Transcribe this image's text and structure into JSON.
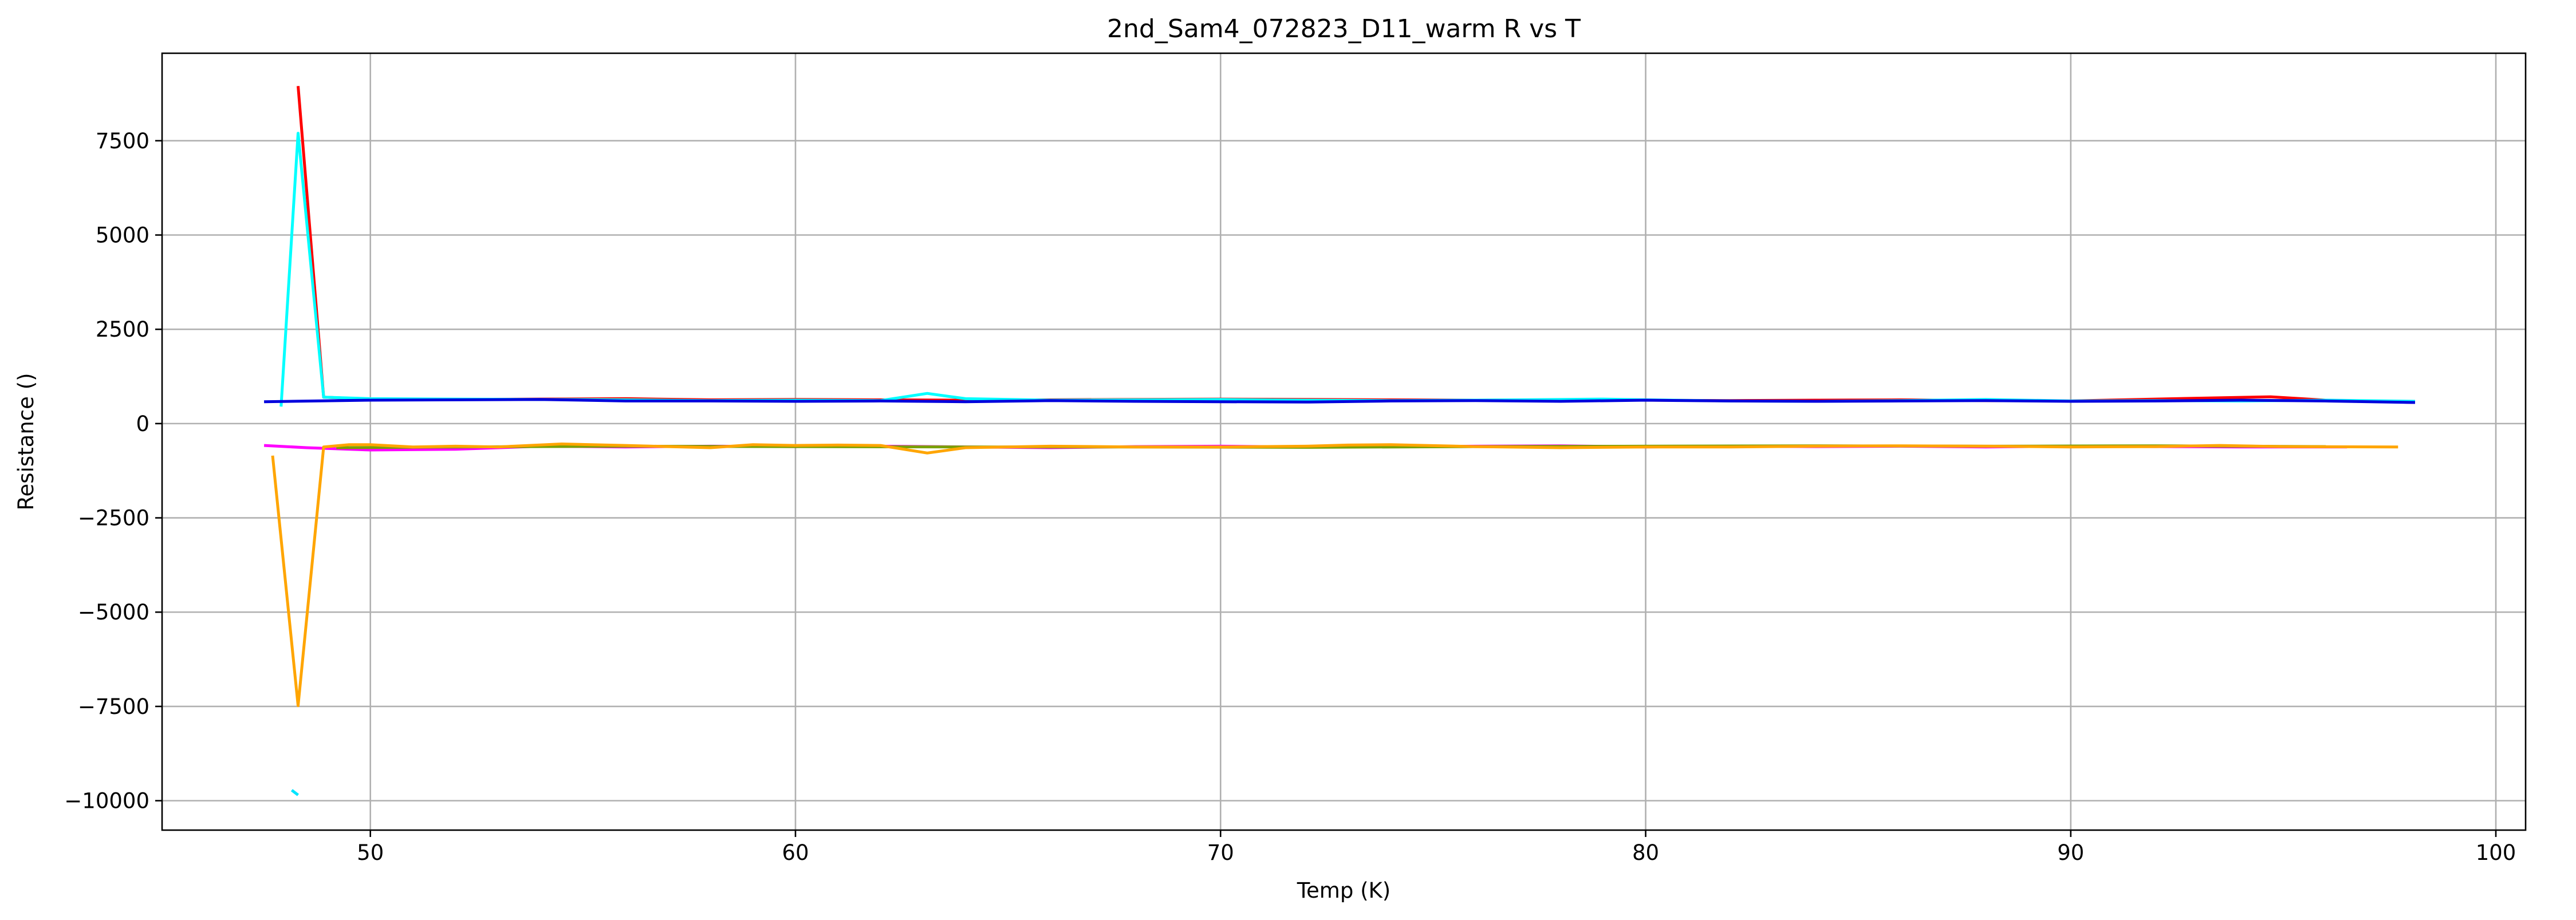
{
  "chart_data": {
    "type": "line",
    "title": "2nd_Sam4_072823_D11_warm R vs T",
    "xlabel": "Temp (K)",
    "ylabel": "Resistance ()",
    "xlim": [
      45.1,
      100.7
    ],
    "ylim": [
      -10780,
      9820
    ],
    "xticks": [
      50,
      60,
      70,
      80,
      90,
      100
    ],
    "xtick_labels": [
      "50",
      "60",
      "70",
      "80",
      "90",
      "100"
    ],
    "yticks": [
      -10000,
      -7500,
      -5000,
      -2500,
      0,
      2500,
      5000,
      7500
    ],
    "ytick_labels": [
      "−10000",
      "−7500",
      "−5000",
      "−2500",
      "0",
      "2500",
      "5000",
      "7500"
    ],
    "grid": true,
    "legend": "none",
    "series": [
      {
        "color": "#ff0000",
        "points": [
          [
            48.3,
            8950
          ],
          [
            48.9,
            700
          ],
          [
            50,
            650
          ],
          [
            52,
            640
          ],
          [
            54,
            650
          ],
          [
            56,
            660
          ],
          [
            58,
            630
          ],
          [
            60,
            640
          ],
          [
            62,
            630
          ],
          [
            64,
            620
          ],
          [
            66,
            630
          ],
          [
            68,
            640
          ],
          [
            70,
            650
          ],
          [
            72,
            640
          ],
          [
            74,
            630
          ],
          [
            76,
            620
          ],
          [
            78,
            630
          ],
          [
            80,
            620
          ],
          [
            82,
            610
          ],
          [
            84,
            620
          ],
          [
            86,
            630
          ],
          [
            88,
            610
          ],
          [
            90,
            600
          ],
          [
            92,
            650
          ],
          [
            94.7,
            710
          ],
          [
            96,
            620
          ],
          [
            98.1,
            560
          ]
        ]
      },
      {
        "color": "#00ffff",
        "points": [
          [
            47.9,
            450
          ],
          [
            48.3,
            7700
          ],
          [
            48.9,
            700
          ],
          [
            50,
            660
          ],
          [
            52,
            650
          ],
          [
            54,
            640
          ],
          [
            56,
            630
          ],
          [
            58,
            610
          ],
          [
            60,
            620
          ],
          [
            62,
            610
          ],
          [
            63.1,
            800
          ],
          [
            64,
            660
          ],
          [
            66,
            620
          ],
          [
            68,
            630
          ],
          [
            70,
            640
          ],
          [
            72,
            620
          ],
          [
            74,
            610
          ],
          [
            76,
            620
          ],
          [
            78,
            640
          ],
          [
            79,
            650
          ],
          [
            80,
            630
          ],
          [
            82,
            600
          ],
          [
            84,
            590
          ],
          [
            86,
            610
          ],
          [
            88,
            640
          ],
          [
            90,
            600
          ],
          [
            92,
            610
          ],
          [
            94,
            600
          ],
          [
            96,
            620
          ],
          [
            98.1,
            590
          ]
        ]
      },
      {
        "color": "#00e5ff",
        "points": [
          [
            48.15,
            -9720
          ],
          [
            48.3,
            -9850
          ]
        ]
      },
      {
        "color": "#0000dd",
        "points": [
          [
            47.5,
            580
          ],
          [
            50,
            620
          ],
          [
            52,
            630
          ],
          [
            54,
            640
          ],
          [
            56,
            600
          ],
          [
            58,
            600
          ],
          [
            60,
            590
          ],
          [
            62,
            600
          ],
          [
            64,
            580
          ],
          [
            66,
            610
          ],
          [
            68,
            590
          ],
          [
            70,
            580
          ],
          [
            72,
            570
          ],
          [
            74,
            600
          ],
          [
            76,
            610
          ],
          [
            78,
            590
          ],
          [
            80,
            620
          ],
          [
            82,
            600
          ],
          [
            84,
            590
          ],
          [
            86,
            600
          ],
          [
            88,
            610
          ],
          [
            90,
            590
          ],
          [
            92,
            600
          ],
          [
            94,
            620
          ],
          [
            96,
            600
          ],
          [
            98.1,
            560
          ]
        ]
      },
      {
        "color": "#ff00ff",
        "points": [
          [
            47.5,
            -580
          ],
          [
            48.5,
            -640
          ],
          [
            50,
            -700
          ],
          [
            52,
            -680
          ],
          [
            54,
            -600
          ],
          [
            56,
            -620
          ],
          [
            58,
            -600
          ],
          [
            60,
            -610
          ],
          [
            62,
            -600
          ],
          [
            64,
            -620
          ],
          [
            66,
            -640
          ],
          [
            68,
            -610
          ],
          [
            70,
            -600
          ],
          [
            72,
            -620
          ],
          [
            74,
            -610
          ],
          [
            76,
            -600
          ],
          [
            78,
            -590
          ],
          [
            80,
            -620
          ],
          [
            82,
            -600
          ],
          [
            84,
            -610
          ],
          [
            86,
            -600
          ],
          [
            88,
            -620
          ],
          [
            90,
            -600
          ],
          [
            92,
            -610
          ],
          [
            94,
            -620
          ],
          [
            96.5,
            -620
          ]
        ]
      },
      {
        "color": "#7aa000",
        "points": [
          [
            49.2,
            -640
          ],
          [
            52,
            -620
          ],
          [
            56,
            -600
          ],
          [
            60,
            -610
          ],
          [
            64,
            -620
          ],
          [
            68,
            -620
          ],
          [
            72,
            -630
          ],
          [
            76,
            -610
          ],
          [
            80,
            -600
          ],
          [
            84,
            -590
          ],
          [
            88,
            -600
          ],
          [
            92,
            -590
          ],
          [
            96,
            -610
          ]
        ]
      },
      {
        "color": "#ffa500",
        "points": [
          [
            47.7,
            -850
          ],
          [
            48.3,
            -7480
          ],
          [
            48.9,
            -620
          ],
          [
            49.5,
            -560
          ],
          [
            50,
            -560
          ],
          [
            51,
            -620
          ],
          [
            52,
            -600
          ],
          [
            53,
            -620
          ],
          [
            54.5,
            -540
          ],
          [
            56,
            -580
          ],
          [
            58,
            -640
          ],
          [
            59,
            -560
          ],
          [
            60,
            -580
          ],
          [
            61,
            -570
          ],
          [
            62,
            -580
          ],
          [
            63.1,
            -780
          ],
          [
            64,
            -640
          ],
          [
            66,
            -600
          ],
          [
            68,
            -620
          ],
          [
            70,
            -620
          ],
          [
            72,
            -600
          ],
          [
            73,
            -570
          ],
          [
            74,
            -560
          ],
          [
            76,
            -610
          ],
          [
            78,
            -640
          ],
          [
            80,
            -620
          ],
          [
            82,
            -620
          ],
          [
            84,
            -600
          ],
          [
            86,
            -590
          ],
          [
            88,
            -600
          ],
          [
            90,
            -620
          ],
          [
            92,
            -610
          ],
          [
            93.5,
            -580
          ],
          [
            95,
            -610
          ],
          [
            97.7,
            -620
          ]
        ]
      }
    ]
  }
}
